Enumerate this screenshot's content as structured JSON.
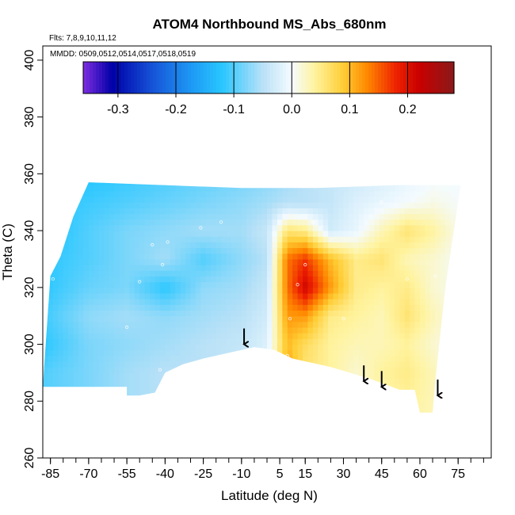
{
  "chart_data": {
    "type": "heatmap",
    "title": "ATOM4 Northbound MS_Abs_680nm",
    "annotations": {
      "flights": "Flts: 7,8,9,10,11,12",
      "dates": "MMDD: 0509,0512,0514,0517,0518,0519"
    },
    "xlabel": "Latitude (deg N)",
    "ylabel": "Theta (C)",
    "xlim": [
      -88,
      88
    ],
    "ylim": [
      260,
      405
    ],
    "x_ticks": [
      -85,
      -70,
      -55,
      -40,
      -25,
      -10,
      5,
      15,
      30,
      45,
      60,
      75
    ],
    "x_minor_ticks": [
      -85,
      -80,
      -75,
      -70,
      -65,
      -60,
      -55,
      -50,
      -45,
      -40,
      -35,
      -30,
      -25,
      -20,
      -15,
      -10,
      -5,
      0,
      5,
      10,
      15,
      20,
      25,
      30,
      35,
      40,
      45,
      50,
      55,
      60,
      65,
      70,
      75,
      80,
      85
    ],
    "y_ticks": [
      260,
      280,
      300,
      320,
      340,
      360,
      380,
      400
    ],
    "colorbar": {
      "range": [
        -0.36,
        0.28
      ],
      "ticks": [
        -0.3,
        -0.2,
        -0.1,
        0.0,
        0.1,
        0.2
      ],
      "tick_labels": [
        "-0.3",
        "-0.2",
        "-0.1",
        "0.0",
        "0.1",
        "0.2"
      ],
      "stops": [
        {
          "v": -0.36,
          "color": "#7f2ee0"
        },
        {
          "v": -0.31,
          "color": "#0000a8"
        },
        {
          "v": -0.24,
          "color": "#1654d8"
        },
        {
          "v": -0.17,
          "color": "#1e9cf5"
        },
        {
          "v": -0.12,
          "color": "#29c7ff"
        },
        {
          "v": -0.05,
          "color": "#b9e1f7"
        },
        {
          "v": 0.0,
          "color": "#f4fbff"
        },
        {
          "v": 0.04,
          "color": "#fff39e"
        },
        {
          "v": 0.09,
          "color": "#ffcc33"
        },
        {
          "v": 0.13,
          "color": "#ff8800"
        },
        {
          "v": 0.18,
          "color": "#ee2200"
        },
        {
          "v": 0.22,
          "color": "#c80000"
        },
        {
          "v": 0.28,
          "color": "#8a1a1a"
        }
      ]
    },
    "grid_nodes": {
      "lat": [
        -88,
        -70,
        -55,
        -40,
        -25,
        -10,
        0,
        8,
        15,
        25,
        35,
        45,
        55,
        65,
        78
      ],
      "theta": [
        278,
        290,
        300,
        310,
        320,
        330,
        340,
        350,
        357
      ],
      "values": [
        [
          -0.1,
          -0.08,
          -0.06,
          -0.05,
          -0.05,
          -0.04,
          -0.02,
          0.03,
          0.04,
          0.03,
          0.02,
          0.03,
          0.04,
          0.03,
          0.0
        ],
        [
          -0.1,
          -0.08,
          -0.06,
          -0.05,
          -0.05,
          -0.04,
          -0.02,
          0.12,
          0.06,
          0.04,
          0.02,
          0.04,
          0.05,
          0.03,
          0.0
        ],
        [
          -0.12,
          -0.08,
          -0.07,
          -0.06,
          -0.05,
          -0.04,
          -0.02,
          0.1,
          0.07,
          0.04,
          0.03,
          0.03,
          0.04,
          0.02,
          0.0
        ],
        [
          -0.11,
          -0.07,
          -0.06,
          -0.07,
          -0.06,
          -0.05,
          -0.03,
          0.12,
          0.12,
          0.05,
          0.04,
          0.03,
          0.06,
          0.03,
          0.0
        ],
        [
          -0.12,
          -0.09,
          -0.08,
          -0.12,
          -0.07,
          -0.06,
          -0.04,
          0.14,
          0.21,
          0.12,
          0.05,
          0.04,
          0.05,
          0.02,
          0.0
        ],
        [
          -0.12,
          -0.1,
          -0.08,
          -0.06,
          -0.1,
          -0.07,
          -0.05,
          0.14,
          0.17,
          0.1,
          0.05,
          0.06,
          0.03,
          0.02,
          0.0
        ],
        [
          -0.13,
          -0.1,
          -0.08,
          -0.07,
          -0.06,
          -0.06,
          -0.04,
          0.06,
          0.05,
          -0.03,
          -0.01,
          0.03,
          0.06,
          0.04,
          0.0
        ],
        [
          -0.12,
          -0.11,
          -0.1,
          -0.09,
          -0.08,
          -0.07,
          -0.06,
          -0.05,
          -0.05,
          -0.04,
          -0.02,
          -0.01,
          0.0,
          0.01,
          0.0
        ],
        [
          -0.12,
          -0.12,
          -0.11,
          -0.1,
          -0.09,
          -0.08,
          -0.07,
          -0.06,
          -0.05,
          -0.04,
          -0.03,
          -0.02,
          -0.01,
          0.0,
          0.0
        ]
      ]
    },
    "top_boundary": [
      {
        "lat": -88,
        "theta": 285
      },
      {
        "lat": -85,
        "theta": 324
      },
      {
        "lat": -81,
        "theta": 331
      },
      {
        "lat": -76,
        "theta": 345
      },
      {
        "lat": -70,
        "theta": 357
      },
      {
        "lat": -40,
        "theta": 356
      },
      {
        "lat": -10,
        "theta": 355
      },
      {
        "lat": 20,
        "theta": 355
      },
      {
        "lat": 50,
        "theta": 356
      },
      {
        "lat": 76,
        "theta": 356
      },
      {
        "lat": 70,
        "theta": 320
      },
      {
        "lat": 66,
        "theta": 287
      },
      {
        "lat": 65,
        "theta": 276
      }
    ],
    "bottom_boundary": [
      {
        "lat": -88,
        "theta": 285
      },
      {
        "lat": -55,
        "theta": 285
      },
      {
        "lat": -55,
        "theta": 282
      },
      {
        "lat": -50,
        "theta": 282
      },
      {
        "lat": -44,
        "theta": 283
      },
      {
        "lat": -40,
        "theta": 290
      },
      {
        "lat": -33,
        "theta": 293
      },
      {
        "lat": -25,
        "theta": 295
      },
      {
        "lat": -15,
        "theta": 297
      },
      {
        "lat": -5,
        "theta": 299
      },
      {
        "lat": 3,
        "theta": 298
      },
      {
        "lat": 10,
        "theta": 295
      },
      {
        "lat": 25,
        "theta": 292
      },
      {
        "lat": 40,
        "theta": 288
      },
      {
        "lat": 52,
        "theta": 284
      },
      {
        "lat": 58,
        "theta": 284
      },
      {
        "lat": 60,
        "theta": 276
      },
      {
        "lat": 65,
        "theta": 276
      }
    ],
    "sample_points": [
      {
        "lat": -84,
        "theta": 323
      },
      {
        "lat": -50,
        "theta": 322
      },
      {
        "lat": -45,
        "theta": 335
      },
      {
        "lat": -41,
        "theta": 328
      },
      {
        "lat": -39,
        "theta": 336
      },
      {
        "lat": -26,
        "theta": 341
      },
      {
        "lat": -18,
        "theta": 343
      },
      {
        "lat": -55,
        "theta": 306
      },
      {
        "lat": -42,
        "theta": 291
      },
      {
        "lat": 8,
        "theta": 296
      },
      {
        "lat": 12,
        "theta": 321
      },
      {
        "lat": 15,
        "theta": 328
      },
      {
        "lat": 18,
        "theta": 343
      },
      {
        "lat": 9,
        "theta": 309
      },
      {
        "lat": 30,
        "theta": 309
      },
      {
        "lat": 45,
        "theta": 350
      },
      {
        "lat": 55,
        "theta": 323
      },
      {
        "lat": 66,
        "theta": 324
      }
    ],
    "arrows": [
      {
        "lat": -9,
        "theta": 300
      },
      {
        "lat": 38,
        "theta": 287
      },
      {
        "lat": 45,
        "theta": 285
      },
      {
        "lat": 67,
        "theta": 282
      }
    ]
  }
}
